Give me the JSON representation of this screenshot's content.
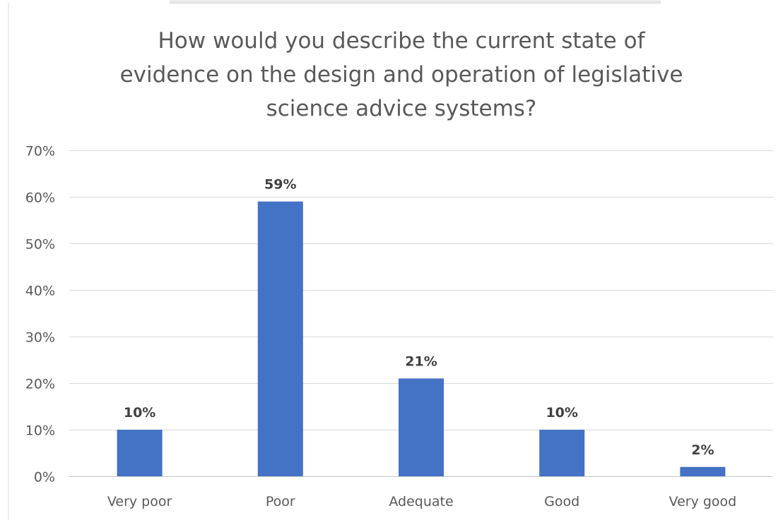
{
  "chart_data": {
    "type": "bar",
    "title_lines": [
      "How would you describe the current state of",
      "evidence on the design and operation of legislative",
      "science advice systems?"
    ],
    "categories": [
      "Very poor",
      "Poor",
      "Adequate",
      "Good",
      "Very good"
    ],
    "values": [
      10,
      59,
      21,
      10,
      2
    ],
    "value_labels": [
      "10%",
      "59%",
      "21%",
      "10%",
      "2%"
    ],
    "ylim": [
      0,
      70
    ],
    "yticks": [
      0,
      10,
      20,
      30,
      40,
      50,
      60,
      70
    ],
    "ytick_labels": [
      "0%",
      "10%",
      "20%",
      "30%",
      "40%",
      "50%",
      "60%",
      "70%"
    ],
    "grid": true,
    "legend": "none",
    "bar_color": "#4472c4",
    "xlabel": "",
    "ylabel": ""
  }
}
